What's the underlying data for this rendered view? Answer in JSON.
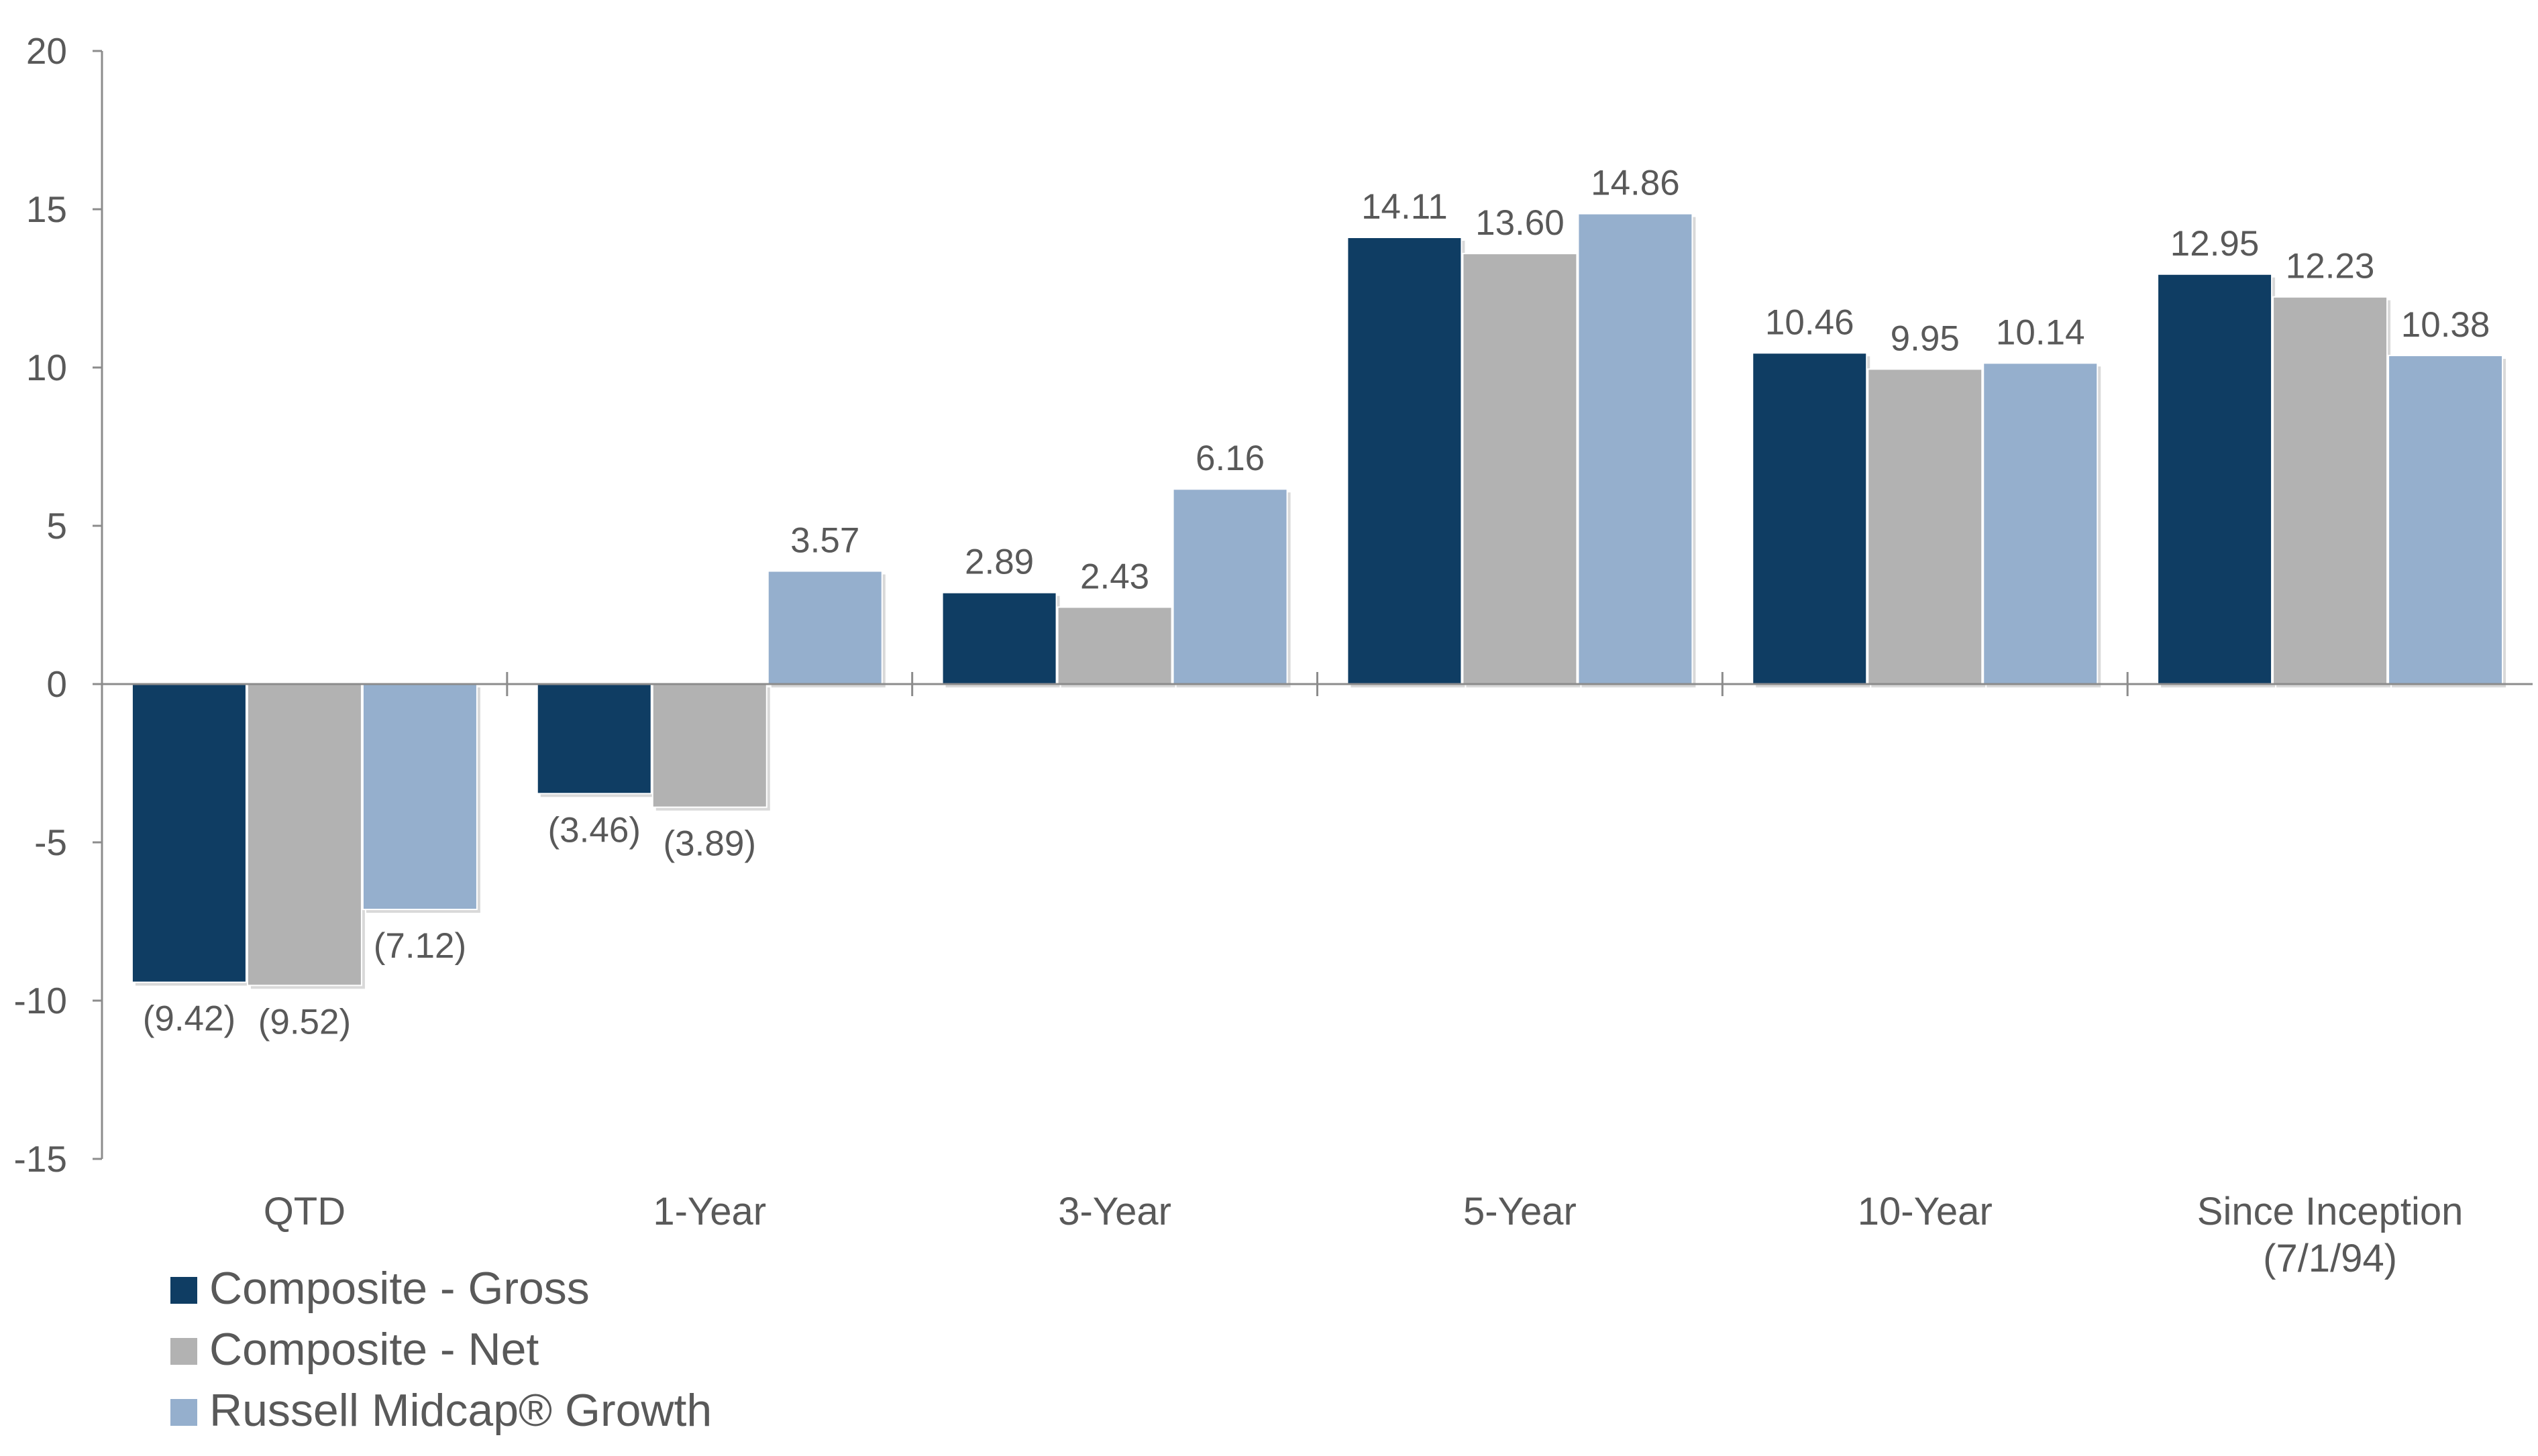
{
  "chart_data": {
    "type": "bar",
    "categories": [
      "QTD",
      "1-Year",
      "3-Year",
      "5-Year",
      "10-Year",
      "Since Inception\n(7/1/94)"
    ],
    "series": [
      {
        "name": "Composite - Gross",
        "color": "#0f3d63",
        "values": [
          -9.42,
          -3.46,
          2.89,
          14.11,
          10.46,
          12.95
        ],
        "labels": [
          "(9.42)",
          "(3.46)",
          "2.89",
          "14.11",
          "10.46",
          "12.95"
        ]
      },
      {
        "name": "Composite - Net",
        "color": "#b2b2b2",
        "values": [
          -9.52,
          -3.89,
          2.43,
          13.6,
          9.95,
          12.23
        ],
        "labels": [
          "(9.52)",
          "(3.89)",
          "2.43",
          "13.60",
          "9.95",
          "12.23"
        ]
      },
      {
        "name": "Russell Midcap® Growth",
        "color": "#95afcd",
        "values": [
          -7.12,
          3.57,
          6.16,
          14.86,
          10.14,
          10.38
        ],
        "labels": [
          "(7.12)",
          "3.57",
          "6.16",
          "14.86",
          "10.14",
          "10.38"
        ]
      }
    ],
    "yticks": [
      20,
      15,
      10,
      5,
      0,
      -5,
      -10,
      -15
    ],
    "ylim": [
      -15,
      20
    ],
    "grid": false,
    "legend": "bottom-left",
    "title": "",
    "xlabel": "",
    "ylabel": ""
  }
}
